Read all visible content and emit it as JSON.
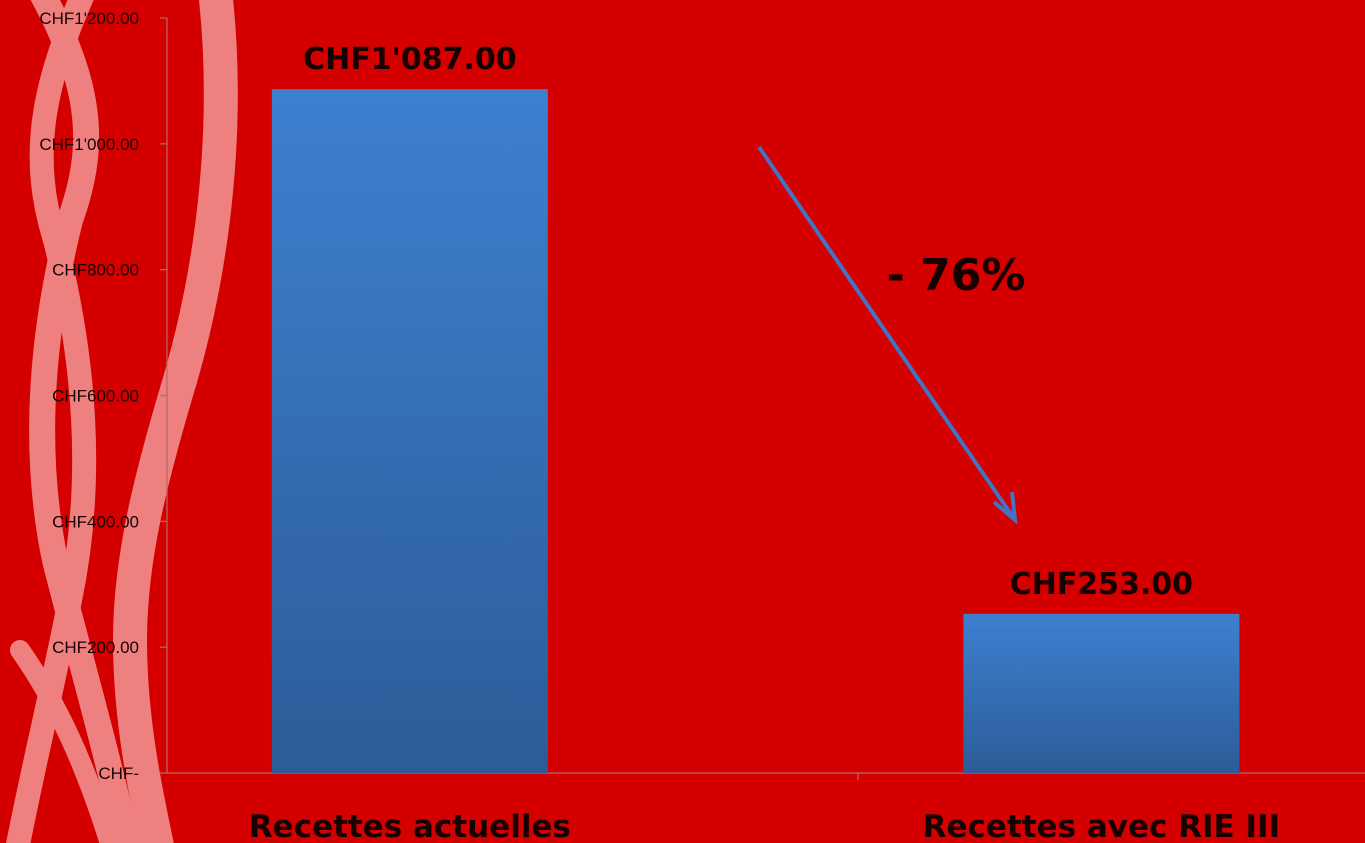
{
  "chart_data": {
    "type": "bar",
    "categories": [
      "Recettes actuelles",
      "Recettes avec RIE III"
    ],
    "values": [
      1087,
      253
    ],
    "data_labels": [
      "CHF1'087.00",
      "CHF253.00"
    ],
    "ylim": [
      0,
      1200
    ],
    "y_ticks": [
      {
        "value": 0,
        "label": "CHF-"
      },
      {
        "value": 200,
        "label": "CHF200.00"
      },
      {
        "value": 400,
        "label": "CHF400.00"
      },
      {
        "value": 600,
        "label": "CHF600.00"
      },
      {
        "value": 800,
        "label": "CHF800.00"
      },
      {
        "value": 1000,
        "label": "CHF1'000.00"
      },
      {
        "value": 1200,
        "label": "CHF1'200.00"
      }
    ],
    "grid": false,
    "annotation": {
      "text": "- 76%"
    }
  },
  "colors": {
    "background": "#d40000",
    "bar_top": "#3d80d0",
    "bar_bottom": "#2c5c98",
    "arrow": "#4472c4",
    "decor_ribbon": "#ef8080"
  }
}
